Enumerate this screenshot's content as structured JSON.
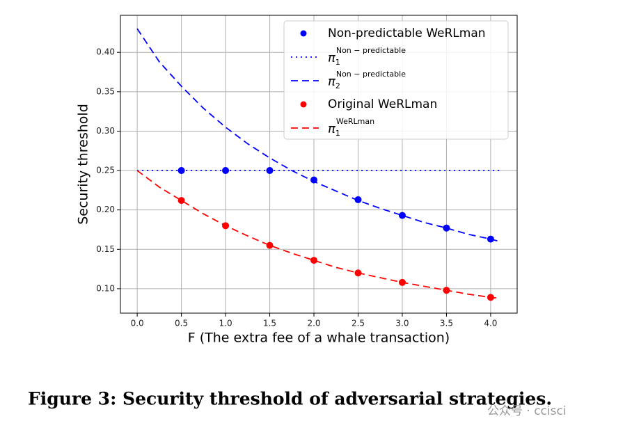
{
  "chart_data": {
    "type": "line",
    "xlabel": "F (The extra fee of a whale transaction)",
    "ylabel": "Security threshold",
    "xlim": [
      -0.19,
      4.3
    ],
    "ylim": [
      0.069,
      0.447
    ],
    "xticks": [
      {
        "value": 0,
        "label": "0.0"
      },
      {
        "value": 0.5,
        "label": "0.5"
      },
      {
        "value": 1,
        "label": "1.0"
      },
      {
        "value": 1.5,
        "label": "1.5"
      },
      {
        "value": 2,
        "label": "2.0"
      },
      {
        "value": 2.5,
        "label": "2.5"
      },
      {
        "value": 3,
        "label": "3.0"
      },
      {
        "value": 3.5,
        "label": "3.5"
      },
      {
        "value": 4,
        "label": "4.0"
      }
    ],
    "yticks": [
      {
        "value": 0.1,
        "label": "0.10"
      },
      {
        "value": 0.15,
        "label": "0.15"
      },
      {
        "value": 0.2,
        "label": "0.20"
      },
      {
        "value": 0.25,
        "label": "0.25"
      },
      {
        "value": 0.3,
        "label": "0.30"
      },
      {
        "value": 0.35,
        "label": "0.35"
      },
      {
        "value": 0.4,
        "label": "0.40"
      }
    ],
    "grid": true,
    "legend": "upper right",
    "series": [
      {
        "name": "Non-predictable WeRLman",
        "color": "#0000ff",
        "style": "scatter",
        "x": [
          0.5,
          1,
          1.5,
          2,
          2.5,
          3,
          3.5,
          4
        ],
        "values": [
          0.25,
          0.25,
          0.25,
          0.238,
          0.213,
          0.193,
          0.177,
          0.163
        ]
      },
      {
        "name": "π",
        "subscript": "1",
        "superscript": "Non − predictable",
        "color": "#0000ff",
        "style": "dotted",
        "x": [
          0,
          4.1
        ],
        "values": [
          0.25,
          0.25
        ]
      },
      {
        "name": "π",
        "subscript": "2",
        "superscript": "Non − predictable",
        "color": "#0000ff",
        "style": "dashed",
        "x": [
          0,
          0.25,
          0.5,
          0.75,
          1,
          1.25,
          1.5,
          1.75,
          2,
          2.25,
          2.5,
          2.75,
          3,
          3.25,
          3.5,
          3.75,
          4,
          4.1
        ],
        "values": [
          0.43,
          0.388,
          0.357,
          0.329,
          0.305,
          0.284,
          0.266,
          0.25,
          0.236,
          0.224,
          0.212,
          0.202,
          0.193,
          0.184,
          0.177,
          0.169,
          0.163,
          0.16
        ]
      },
      {
        "name": "Original WeRLman",
        "color": "#ff0000",
        "style": "scatter",
        "x": [
          0.5,
          1,
          1.5,
          2,
          2.5,
          3,
          3.5,
          4
        ],
        "values": [
          0.212,
          0.18,
          0.155,
          0.136,
          0.12,
          0.108,
          0.098,
          0.089
        ]
      },
      {
        "name": "π",
        "subscript": "1",
        "superscript": "WeRLman",
        "color": "#ff0000",
        "style": "dashed",
        "x": [
          0,
          0.25,
          0.5,
          0.75,
          1,
          1.25,
          1.5,
          1.75,
          2,
          2.25,
          2.5,
          2.75,
          3,
          3.25,
          3.5,
          3.75,
          4,
          4.1
        ],
        "values": [
          0.25,
          0.229,
          0.212,
          0.195,
          0.18,
          0.167,
          0.155,
          0.145,
          0.136,
          0.127,
          0.12,
          0.114,
          0.108,
          0.103,
          0.098,
          0.093,
          0.089,
          0.088
        ]
      }
    ]
  },
  "caption": "Figure 3: Security threshold of adversarial strategies.",
  "watermark": "公众号 · ccisci"
}
